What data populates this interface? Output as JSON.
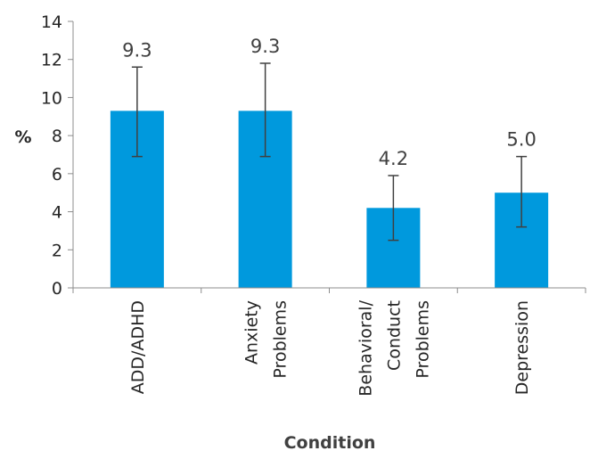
{
  "chart_data": {
    "type": "bar",
    "categories": [
      [
        "ADD/ADHD"
      ],
      [
        "Anxiety",
        "Problems"
      ],
      [
        "Behavioral/",
        "Conduct",
        "Problems"
      ],
      [
        "Depression"
      ]
    ],
    "values": [
      9.3,
      9.3,
      4.2,
      5.0
    ],
    "value_labels": [
      "9.3",
      "9.3",
      "4.2",
      "5.0"
    ],
    "error_bars": [
      {
        "low": 6.9,
        "high": 11.6
      },
      {
        "low": 6.9,
        "high": 11.8
      },
      {
        "low": 2.5,
        "high": 5.9
      },
      {
        "low": 3.2,
        "high": 6.9
      }
    ],
    "ylim": [
      0,
      14
    ],
    "yticks": [
      0,
      2,
      4,
      6,
      8,
      10,
      12,
      14
    ],
    "ylabel": "%",
    "xlabel": "Condition",
    "bar_color": "#0099dd",
    "error_color": "#404040",
    "axis_color": "#8c8c8c",
    "grid": false,
    "legend": "none"
  }
}
